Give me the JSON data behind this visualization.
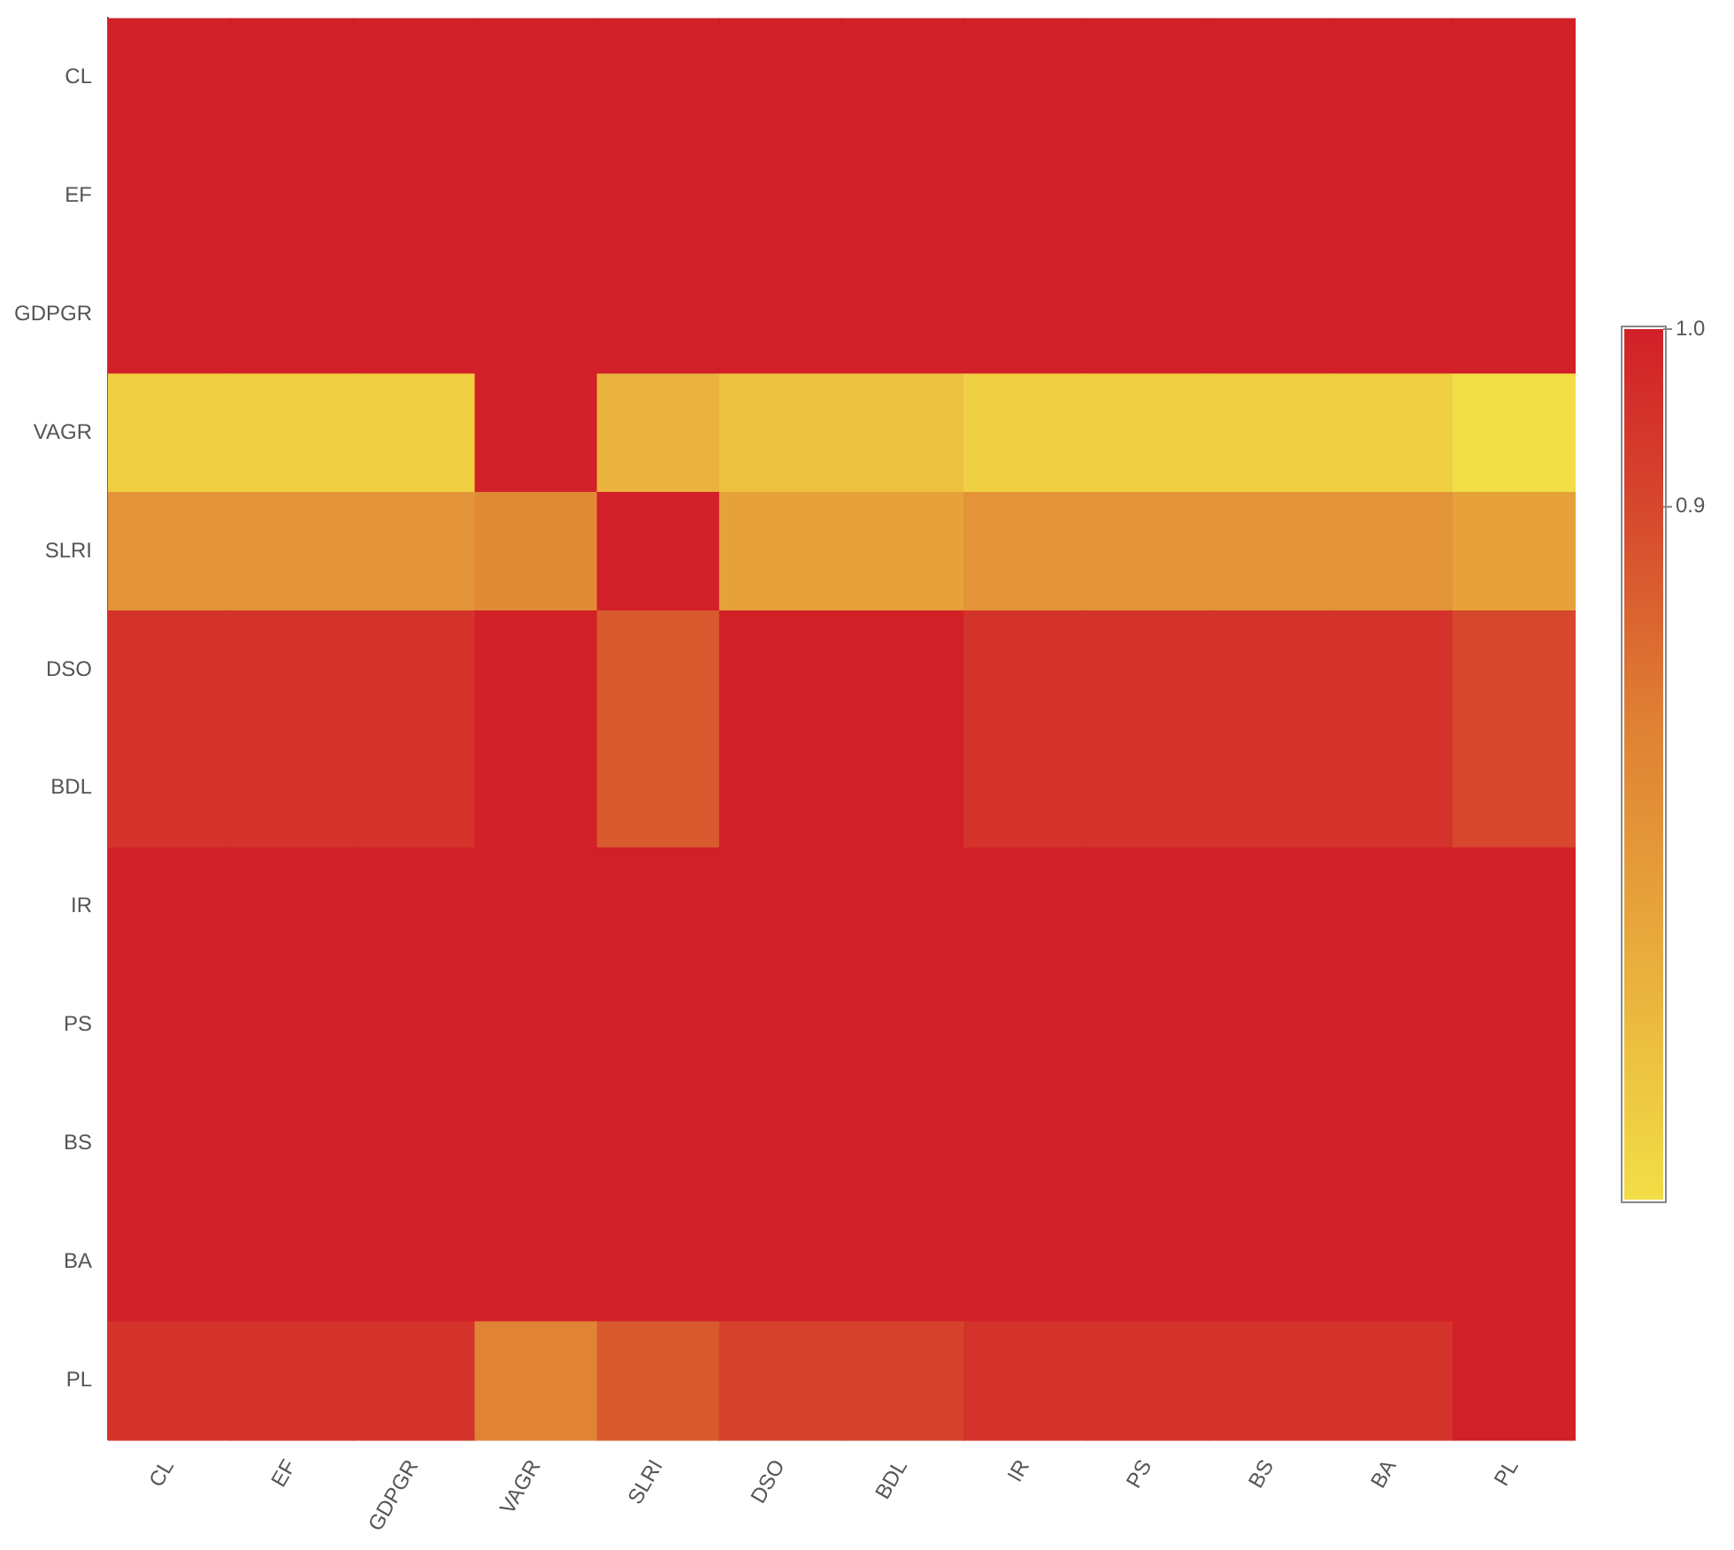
{
  "chart_data": {
    "type": "heatmap",
    "categories": [
      "CL",
      "EF",
      "GDPGR",
      "VAGR",
      "SLRI",
      "DSO",
      "BDL",
      "IR",
      "PS",
      "BS",
      "BA",
      "PL"
    ],
    "y_categories": [
      "CL",
      "EF",
      "GDPGR",
      "VAGR",
      "SLRI",
      "DSO",
      "BDL",
      "IR",
      "PS",
      "BS",
      "BA",
      "PL"
    ],
    "cells": [
      [
        1,
        1,
        1,
        1,
        1,
        1,
        1,
        1,
        1,
        1,
        1,
        1
      ],
      [
        1,
        1,
        1,
        1,
        1,
        1,
        1,
        1,
        1,
        1,
        1,
        1
      ],
      [
        1,
        1,
        1,
        1,
        1,
        1,
        1,
        1,
        1,
        1,
        1,
        1
      ],
      [
        0.55,
        0.55,
        0.55,
        1,
        0.63,
        0.59,
        0.59,
        0.55,
        0.55,
        0.55,
        0.55,
        0.51
      ],
      [
        0.72,
        0.72,
        0.72,
        0.75,
        1,
        0.68,
        0.68,
        0.72,
        0.72,
        0.72,
        0.72,
        0.68
      ],
      [
        0.95,
        0.95,
        0.95,
        1,
        0.86,
        1,
        1,
        0.95,
        0.95,
        0.95,
        0.95,
        0.9
      ],
      [
        0.95,
        0.95,
        0.95,
        1,
        0.86,
        1,
        1,
        0.95,
        0.95,
        0.95,
        0.95,
        0.9
      ],
      [
        1,
        1,
        1,
        1,
        1,
        1,
        1,
        1,
        1,
        1,
        1,
        1
      ],
      [
        1,
        1,
        1,
        1,
        1,
        1,
        1,
        1,
        1,
        1,
        1,
        1
      ],
      [
        1,
        1,
        1,
        1,
        1,
        1,
        1,
        1,
        1,
        1,
        1,
        1
      ],
      [
        1,
        1,
        1,
        1,
        1,
        1,
        1,
        1,
        1,
        1,
        1,
        1
      ],
      [
        0.95,
        0.95,
        0.95,
        0.77,
        0.86,
        0.91,
        0.91,
        0.95,
        0.95,
        0.95,
        0.95,
        1
      ]
    ],
    "clim": [
      0.51,
      1.0
    ],
    "cticks": [
      {
        "value": 1.0,
        "label": "1.0"
      },
      {
        "value": 0.9,
        "label": "0.9"
      }
    ]
  }
}
